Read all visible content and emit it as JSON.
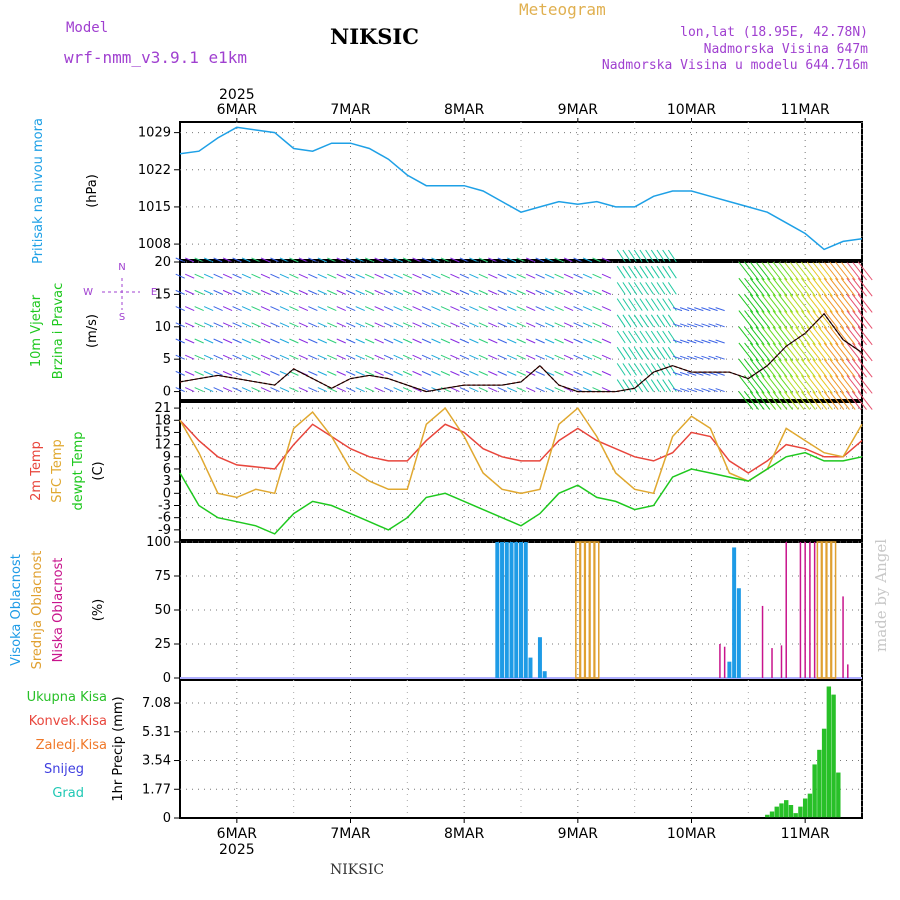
{
  "header": {
    "model_label": "Model",
    "model_name": "wrf-nmm_v3.9.1 e1km",
    "station": "NIKSIC",
    "product": "Meteogram",
    "lonlat": "lon,lat (18.95E, 42.78N)",
    "elevation": "Nadmorska Visina 647m",
    "model_elevation": "Nadmorska Visina u modelu 644.716m"
  },
  "footer": {
    "station": "NIKSIC",
    "credit": "made by Angel"
  },
  "colors": {
    "pressure": "#1ea0e6",
    "temp2m": "#e8463c",
    "sfc": "#e0a830",
    "dewpt": "#1ec81e",
    "high_cloud": "#1e9be6",
    "mid_cloud": "#e0a030",
    "low_cloud": "#c8148c",
    "precip": "#28c028"
  },
  "x_axis": {
    "year_label": "2025",
    "dates": [
      "6MAR",
      "7MAR",
      "8MAR",
      "9MAR",
      "10MAR",
      "11MAR"
    ],
    "range_hours": [
      -12,
      132
    ]
  },
  "chart_data": [
    {
      "type": "line",
      "name": "pressure",
      "ylabel_lines": [
        "Pritisak na nivou mora",
        "(hPa)"
      ],
      "yticks": [
        1008,
        1015,
        1022,
        1029
      ],
      "ylim": [
        1005,
        1031
      ],
      "x_hours": [
        -12,
        -8,
        -4,
        0,
        4,
        8,
        12,
        16,
        20,
        24,
        28,
        32,
        36,
        40,
        44,
        48,
        52,
        56,
        60,
        64,
        68,
        72,
        76,
        80,
        84,
        88,
        92,
        96,
        100,
        104,
        108,
        112,
        116,
        120,
        124,
        128,
        132
      ],
      "series": [
        {
          "values": [
            1025,
            1025.5,
            1028,
            1030,
            1029.5,
            1029,
            1026,
            1025.5,
            1027,
            1027,
            1026,
            1024,
            1021,
            1019,
            1019,
            1019,
            1018,
            1016,
            1014,
            1015,
            1016,
            1015.5,
            1016,
            1015,
            1015,
            1017,
            1018,
            1018,
            1017,
            1016,
            1015,
            1014,
            1012,
            1010,
            1007,
            1008.5,
            1009
          ]
        }
      ]
    },
    {
      "type": "line",
      "name": "wind",
      "ylabel_lines": [
        "10m Vjetar",
        "Brzina i Pravac",
        "(m/s)"
      ],
      "compass": [
        "N",
        "W",
        "E",
        "S"
      ],
      "yticks": [
        0,
        5,
        10,
        15,
        20
      ],
      "ylim": [
        -1.3,
        20
      ],
      "x_hours": [
        -12,
        -8,
        -4,
        0,
        4,
        8,
        12,
        16,
        20,
        24,
        28,
        32,
        36,
        40,
        44,
        48,
        52,
        56,
        60,
        64,
        68,
        72,
        76,
        80,
        84,
        88,
        92,
        96,
        100,
        104,
        108,
        112,
        116,
        120,
        124,
        128,
        132
      ],
      "series": [
        {
          "values": [
            1.5,
            2,
            2.5,
            2,
            1.5,
            1,
            3.5,
            2,
            0.5,
            2,
            2.5,
            2,
            1,
            0,
            0.5,
            1,
            1,
            1,
            1.5,
            4,
            1,
            0,
            0,
            0,
            0.5,
            3,
            4,
            3,
            3,
            3,
            2,
            4,
            7,
            9,
            12,
            8,
            6
          ]
        }
      ]
    },
    {
      "type": "line",
      "name": "temperature",
      "ylabel_lines": [
        "2m Temp",
        "SFC Temp",
        "dewpt Temp",
        "(C)"
      ],
      "yticks": [
        -9,
        -6,
        -3,
        0,
        3,
        6,
        9,
        12,
        15,
        18,
        21
      ],
      "ylim": [
        -11.5,
        22.5
      ],
      "x_hours": [
        -12,
        -8,
        -4,
        0,
        4,
        8,
        12,
        16,
        20,
        24,
        28,
        32,
        36,
        40,
        44,
        48,
        52,
        56,
        60,
        64,
        68,
        72,
        76,
        80,
        84,
        88,
        92,
        96,
        100,
        104,
        108,
        112,
        116,
        120,
        124,
        128,
        132
      ],
      "series": [
        {
          "values": [
            18,
            13,
            9,
            7,
            6.5,
            6,
            12,
            17,
            14,
            11,
            9,
            8,
            8,
            13,
            17,
            15,
            11,
            9,
            8,
            8,
            13,
            16,
            13,
            11,
            9,
            8,
            10,
            15,
            14,
            8,
            5,
            8,
            12,
            11,
            9,
            9,
            13
          ]
        },
        {
          "values": [
            18,
            10,
            0,
            -1,
            1,
            0,
            16,
            20,
            14,
            6,
            3,
            1,
            1,
            17,
            21,
            14,
            5,
            1,
            0,
            1,
            17,
            21,
            14,
            5,
            1,
            0,
            14,
            19,
            16,
            5,
            3,
            6,
            16,
            13,
            10,
            9,
            17
          ]
        },
        {
          "values": [
            5,
            -3,
            -6,
            -7,
            -8,
            -10,
            -5,
            -2,
            -3,
            -5,
            -7,
            -9,
            -6,
            -1,
            0,
            -2,
            -4,
            -6,
            -8,
            -5,
            0,
            2,
            -1,
            -2,
            -4,
            -3,
            4,
            6,
            5,
            4,
            3,
            6,
            9,
            10,
            8,
            8,
            9
          ]
        }
      ]
    },
    {
      "type": "bar",
      "name": "cloudiness",
      "ylabel_lines": [
        "Visoka Oblacnost",
        "Srednja Oblacnost",
        "Niska Oblacnost",
        "(%)"
      ],
      "yticks": [
        0,
        25,
        50,
        75,
        100
      ],
      "ylim": [
        0,
        100
      ],
      "series": [
        {
          "name": "Visoka Oblacnost",
          "x_hours": [
            55,
            56,
            57,
            58,
            59,
            60,
            61,
            62,
            64,
            65,
            104,
            105,
            106
          ],
          "values": [
            100,
            100,
            100,
            100,
            100,
            100,
            100,
            15,
            30,
            5,
            12,
            96,
            66
          ]
        },
        {
          "name": "Srednja Oblacnost",
          "x_hours": [
            72,
            73,
            74,
            75,
            76,
            123,
            124,
            125,
            126
          ],
          "values": [
            100,
            100,
            100,
            100,
            100,
            100,
            100,
            100,
            100
          ]
        },
        {
          "name": "Niska Oblacnost",
          "x_hours": [
            102,
            103,
            111,
            113,
            115,
            116,
            119,
            120,
            121,
            122,
            128,
            129
          ],
          "values": [
            25,
            23,
            53,
            22,
            24,
            100,
            100,
            100,
            100,
            100,
            60,
            10
          ]
        }
      ]
    },
    {
      "type": "bar",
      "name": "precipitation",
      "ylabel_lines": [
        "Ukupna Kisa",
        "Konvek.Kisa",
        "Zaledj.Kisa",
        "Snijeg",
        "Grad",
        "1hr Precip (mm)"
      ],
      "yticks": [
        0,
        1.77,
        3.54,
        5.31,
        7.08
      ],
      "ylim": [
        0,
        8.5
      ],
      "series": [
        {
          "name": "Ukupna Kisa",
          "x_hours": [
            112,
            113,
            114,
            115,
            116,
            117,
            118,
            119,
            120,
            121,
            122,
            123,
            124,
            125,
            126,
            127
          ],
          "values": [
            0.2,
            0.4,
            0.7,
            0.9,
            1.1,
            0.8,
            0.3,
            0.7,
            1.2,
            1.5,
            3.3,
            4.2,
            5.5,
            8.1,
            7.6,
            2.8
          ]
        },
        {
          "name": "Konvek.Kisa",
          "x_hours": [],
          "values": []
        },
        {
          "name": "Zaledj.Kisa",
          "x_hours": [],
          "values": []
        },
        {
          "name": "Snijeg",
          "x_hours": [],
          "values": []
        },
        {
          "name": "Grad",
          "x_hours": [],
          "values": []
        }
      ]
    }
  ]
}
